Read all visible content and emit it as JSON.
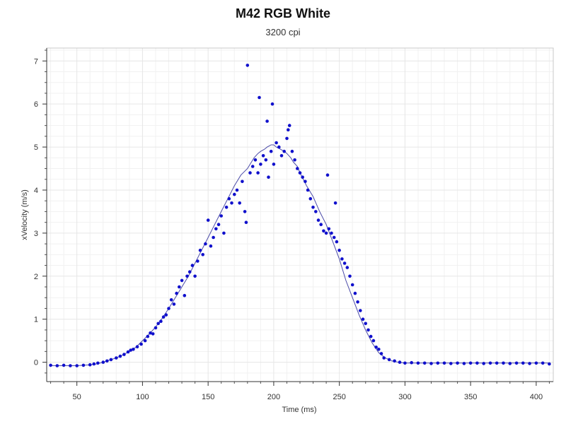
{
  "chart_data": {
    "type": "scatter",
    "title": "M42 RGB White",
    "subtitle": "3200 cpi",
    "xlabel": "Time (ms)",
    "ylabel": "xVelocity (m/s)",
    "xlim": [
      27,
      413
    ],
    "ylim": [
      -0.45,
      7.3
    ],
    "xticks": [
      50,
      100,
      150,
      200,
      250,
      300,
      350,
      400
    ],
    "yticks": [
      0,
      1,
      2,
      3,
      4,
      5,
      6,
      7
    ],
    "grid": true,
    "colors": {
      "points": "#1010cc",
      "line": "#4a4aa8",
      "grid": "#e6e6e6"
    },
    "series": [
      {
        "type": "line",
        "x": [
          30,
          40,
          50,
          60,
          65,
          70,
          75,
          80,
          85,
          90,
          95,
          100,
          105,
          110,
          115,
          120,
          125,
          130,
          135,
          140,
          145,
          150,
          155,
          160,
          165,
          170,
          175,
          180,
          182,
          185,
          188,
          190,
          193,
          195,
          198,
          200,
          202,
          205,
          208,
          210,
          213,
          215,
          218,
          220,
          225,
          230,
          235,
          240,
          245,
          250,
          255,
          260,
          265,
          270,
          275,
          280,
          285,
          290,
          295,
          300,
          310,
          320,
          350,
          380,
          410
        ],
        "y": [
          -0.08,
          -0.08,
          -0.08,
          -0.06,
          -0.04,
          0.0,
          0.05,
          0.1,
          0.17,
          0.25,
          0.35,
          0.5,
          0.65,
          0.82,
          1.02,
          1.25,
          1.5,
          1.75,
          2.0,
          2.3,
          2.6,
          2.9,
          3.2,
          3.5,
          3.8,
          4.1,
          4.35,
          4.5,
          4.6,
          4.75,
          4.85,
          4.9,
          4.95,
          5.0,
          5.05,
          5.05,
          5.0,
          4.95,
          4.9,
          4.85,
          4.75,
          4.65,
          4.55,
          4.4,
          4.1,
          3.85,
          3.5,
          3.2,
          2.8,
          2.4,
          1.9,
          1.5,
          1.1,
          0.75,
          0.45,
          0.22,
          0.1,
          0.03,
          0.0,
          -0.02,
          -0.02,
          -0.02,
          -0.02,
          -0.02,
          -0.02
        ]
      },
      {
        "type": "scatter",
        "x": [
          30,
          35,
          40,
          45,
          50,
          55,
          60,
          63,
          66,
          70,
          73,
          76,
          80,
          83,
          86,
          89,
          91,
          93,
          96,
          99,
          102,
          104,
          106,
          108,
          110,
          112,
          114,
          116,
          118,
          120,
          122,
          124,
          126,
          128,
          130,
          132,
          134,
          136,
          138,
          140,
          142,
          144,
          146,
          148,
          150,
          152,
          154,
          156,
          158,
          160,
          162,
          164,
          166,
          168,
          170,
          172,
          174,
          176,
          178,
          179,
          180,
          182,
          184,
          186,
          188,
          189,
          190,
          192,
          194,
          195,
          196,
          198,
          199,
          200,
          202,
          204,
          206,
          208,
          210,
          211,
          212,
          214,
          216,
          218,
          220,
          222,
          224,
          226,
          228,
          230,
          232,
          234,
          236,
          238,
          240,
          241,
          242,
          244,
          246,
          247,
          248,
          250,
          252,
          254,
          256,
          258,
          260,
          262,
          264,
          266,
          268,
          270,
          272,
          274,
          276,
          278,
          280,
          282,
          284,
          288,
          292,
          296,
          300,
          305,
          310,
          315,
          320,
          325,
          330,
          335,
          340,
          345,
          350,
          355,
          360,
          365,
          370,
          375,
          380,
          385,
          390,
          395,
          400,
          405,
          410
        ],
        "y": [
          -0.07,
          -0.08,
          -0.07,
          -0.08,
          -0.08,
          -0.07,
          -0.06,
          -0.04,
          -0.02,
          0.0,
          0.03,
          0.06,
          0.1,
          0.14,
          0.18,
          0.24,
          0.28,
          0.3,
          0.36,
          0.42,
          0.5,
          0.6,
          0.68,
          0.66,
          0.8,
          0.9,
          0.95,
          1.05,
          1.1,
          1.25,
          1.45,
          1.35,
          1.6,
          1.75,
          1.9,
          1.55,
          2.0,
          2.1,
          2.25,
          2.0,
          2.35,
          2.6,
          2.5,
          2.75,
          3.3,
          2.7,
          2.9,
          3.1,
          3.2,
          3.4,
          3.0,
          3.6,
          3.8,
          3.7,
          3.9,
          4.0,
          3.7,
          4.2,
          3.5,
          3.25,
          6.9,
          4.4,
          4.55,
          4.7,
          4.4,
          6.15,
          4.6,
          4.8,
          4.7,
          5.6,
          4.3,
          4.9,
          6.0,
          4.6,
          5.1,
          5.0,
          4.8,
          4.9,
          5.2,
          5.4,
          5.5,
          4.9,
          4.7,
          4.5,
          4.4,
          4.3,
          4.2,
          4.0,
          3.8,
          3.6,
          3.5,
          3.3,
          3.2,
          3.05,
          3.0,
          4.35,
          3.1,
          3.0,
          2.9,
          3.7,
          2.8,
          2.6,
          2.4,
          2.3,
          2.2,
          2.0,
          1.8,
          1.6,
          1.4,
          1.2,
          1.0,
          0.9,
          0.75,
          0.6,
          0.5,
          0.35,
          0.3,
          0.2,
          0.1,
          0.06,
          0.03,
          0.0,
          -0.02,
          -0.01,
          -0.02,
          -0.02,
          -0.03,
          -0.02,
          -0.02,
          -0.03,
          -0.02,
          -0.03,
          -0.02,
          -0.02,
          -0.03,
          -0.02,
          -0.02,
          -0.02,
          -0.03,
          -0.02,
          -0.02,
          -0.03,
          -0.02,
          -0.02,
          -0.04
        ]
      }
    ]
  }
}
